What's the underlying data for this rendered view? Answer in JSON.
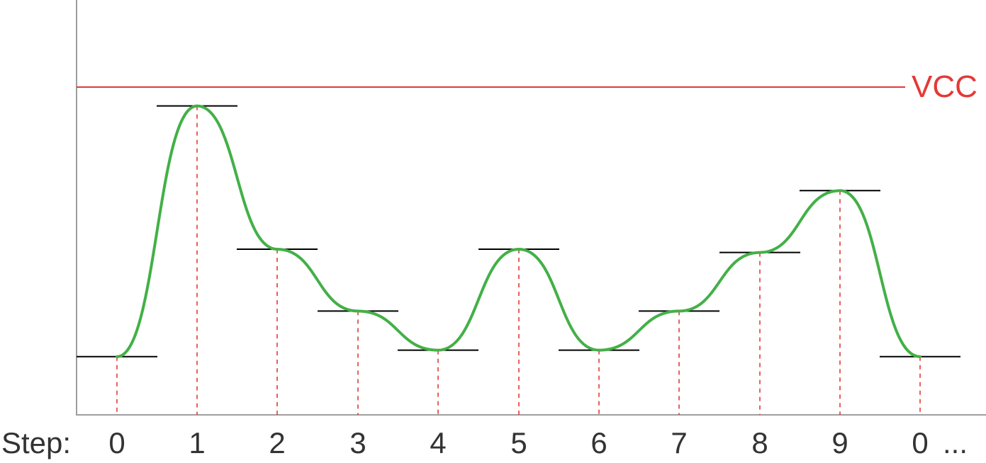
{
  "vcc_label": "VCC",
  "step_prefix": "Step:",
  "ellipsis": "...",
  "steps": [
    "0",
    "1",
    "2",
    "3",
    "4",
    "5",
    "6",
    "7",
    "8",
    "9",
    "0"
  ],
  "levels": [
    0.07,
    0.84,
    0.4,
    0.21,
    0.09,
    0.4,
    0.09,
    0.21,
    0.39,
    0.58,
    0.07
  ],
  "colors": {
    "vcc": "#e53935",
    "wave": "#43b047",
    "level": "#000000",
    "axis": "#9e9e9e"
  }
}
